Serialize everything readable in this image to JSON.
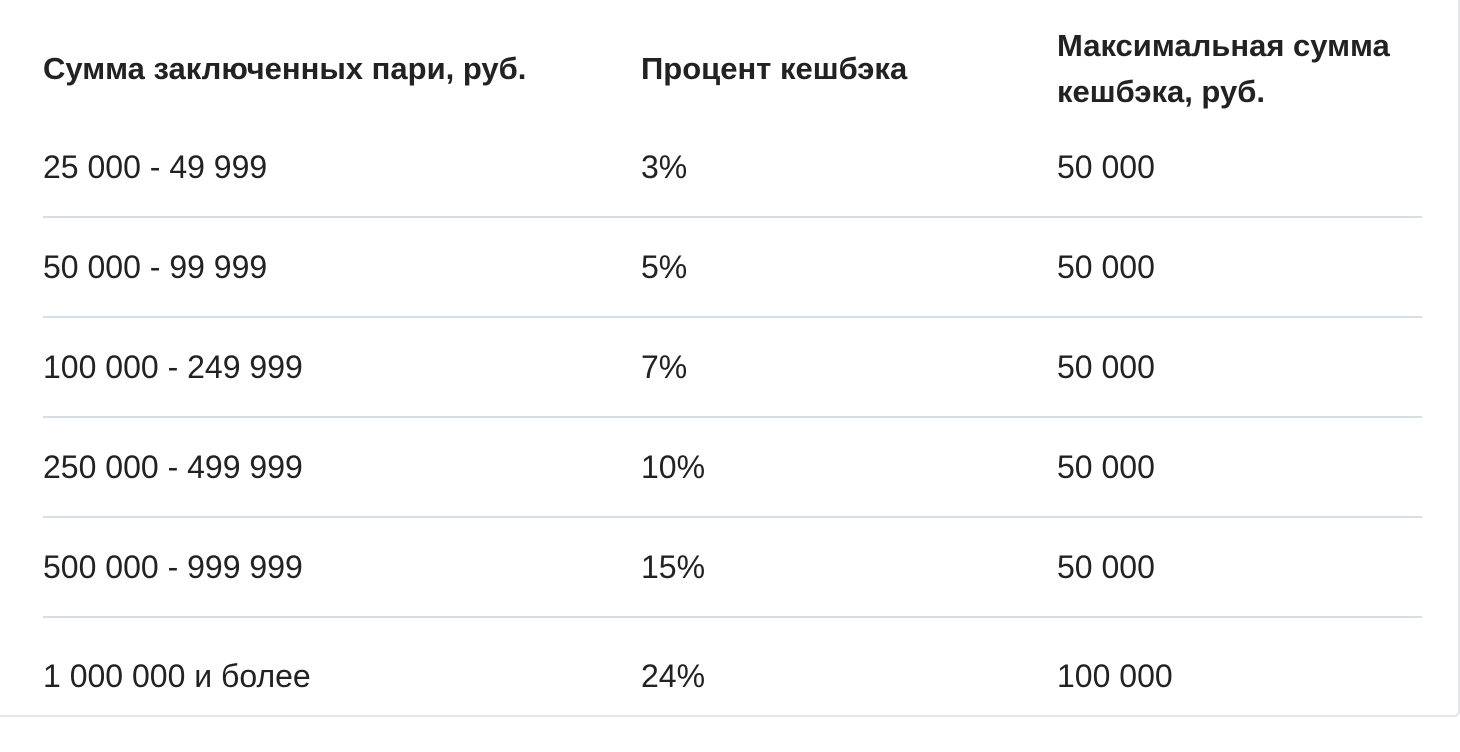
{
  "table": {
    "headers": [
      "Сумма заключенных пари, руб.",
      "Процент кешбэка",
      "Максимальная сумма кешбэка, руб."
    ],
    "rows": [
      [
        "25 000 - 49 999",
        "3%",
        "50 000"
      ],
      [
        "50 000 - 99 999",
        "5%",
        "50 000"
      ],
      [
        "100 000 - 249 999",
        "7%",
        "50 000"
      ],
      [
        "250 000 - 499 999",
        "10%",
        "50 000"
      ],
      [
        "500 000 - 999 999",
        "15%",
        "50 000"
      ],
      [
        "1 000 000 и более",
        "24%",
        "100 000"
      ]
    ]
  },
  "colors": {
    "text": "#222222",
    "divider": "#d8dee5",
    "background": "#ffffff"
  }
}
